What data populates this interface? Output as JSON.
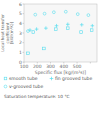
{
  "chart_data": {
    "type": "scatter",
    "xlabel": "Specific flux [kg/(m²s)]",
    "ylabel": "Local heat transfer\ncoefficient\n[kW/(m²K)]",
    "xlim": [
      100,
      650
    ],
    "ylim": [
      0,
      6
    ],
    "xticks": [
      100,
      200,
      300,
      400,
      500,
      {
        "value": 600,
        "label": null
      }
    ],
    "yticks": [
      0,
      1,
      2,
      3,
      4,
      5,
      6
    ],
    "grid": false,
    "series": [
      {
        "name": "smooth tube",
        "color": "#55ddee",
        "marker": "square",
        "x": [
          130,
          170,
          250,
          340,
          430,
          530,
          610
        ],
        "values": [
          0.9,
          3.1,
          1.4,
          3.4,
          3.5,
          3.1,
          3.3
        ]
      },
      {
        "name": "fin grooved tube",
        "color": "#55ddee",
        "marker": "plus",
        "x": [
          145,
          195,
          265,
          345,
          430,
          535,
          615
        ],
        "values": [
          3.3,
          3.4,
          3.5,
          3.75,
          3.9,
          3.85,
          3.75
        ]
      },
      {
        "name": "v-grooved tube",
        "color": "#55ddee",
        "marker": "circle",
        "x": [
          130,
          185,
          255,
          325,
          415,
          505,
          585
        ],
        "values": [
          3.2,
          4.9,
          5.0,
          5.15,
          5.2,
          4.95,
          4.85
        ]
      }
    ],
    "annotations": [
      "Saturation temperature: 10 °C"
    ]
  }
}
